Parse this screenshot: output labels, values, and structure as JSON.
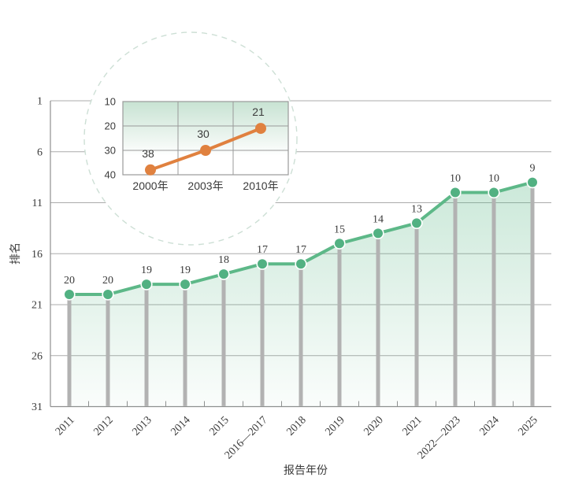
{
  "page": {
    "background": "#ffffff"
  },
  "colors": {
    "text": "#3b3b3b",
    "grid": "#ababab",
    "axis": "#8f8f8f",
    "stem": "#b2b2b2",
    "line_green": "#5db888",
    "marker_green": "#52b182",
    "marker_halo": "#ffffff",
    "area_green": "#5db888",
    "line_orange": "#e0813f",
    "inset_grid": "#999999",
    "inset_bg_top": "#c8e3d3",
    "callout_dash": "#cddfd5"
  },
  "chart_data": [
    {
      "id": "main-ranking-trend",
      "type": "line",
      "title": "",
      "categories": [
        "2011",
        "2012",
        "2013",
        "2014",
        "2015",
        "2016—2017",
        "2018",
        "2019",
        "2020",
        "2021",
        "2022—2023",
        "2024",
        "2025"
      ],
      "values": [
        20,
        20,
        19,
        19,
        18,
        17,
        17,
        15,
        14,
        13,
        10,
        10,
        9
      ],
      "xlabel": "报告年份",
      "ylabel": "排名",
      "yticks": [
        1,
        6,
        11,
        16,
        21,
        26,
        31
      ],
      "ylim": [
        1,
        31
      ],
      "y_inverted": true,
      "grid": true,
      "marker": "circle",
      "stems": true,
      "area_fill": true,
      "legend": "none"
    },
    {
      "id": "inset-early-years",
      "type": "line",
      "title": "",
      "categories": [
        "2000年",
        "2003年",
        "2010年"
      ],
      "values": [
        38,
        30,
        21
      ],
      "xlabel": "",
      "ylabel": "",
      "yticks": [
        10,
        20,
        30,
        40
      ],
      "ylim": [
        10,
        40
      ],
      "y_inverted": true,
      "grid": true,
      "marker": "circle",
      "frame": "dashed-circle-callout",
      "legend": "none"
    }
  ]
}
